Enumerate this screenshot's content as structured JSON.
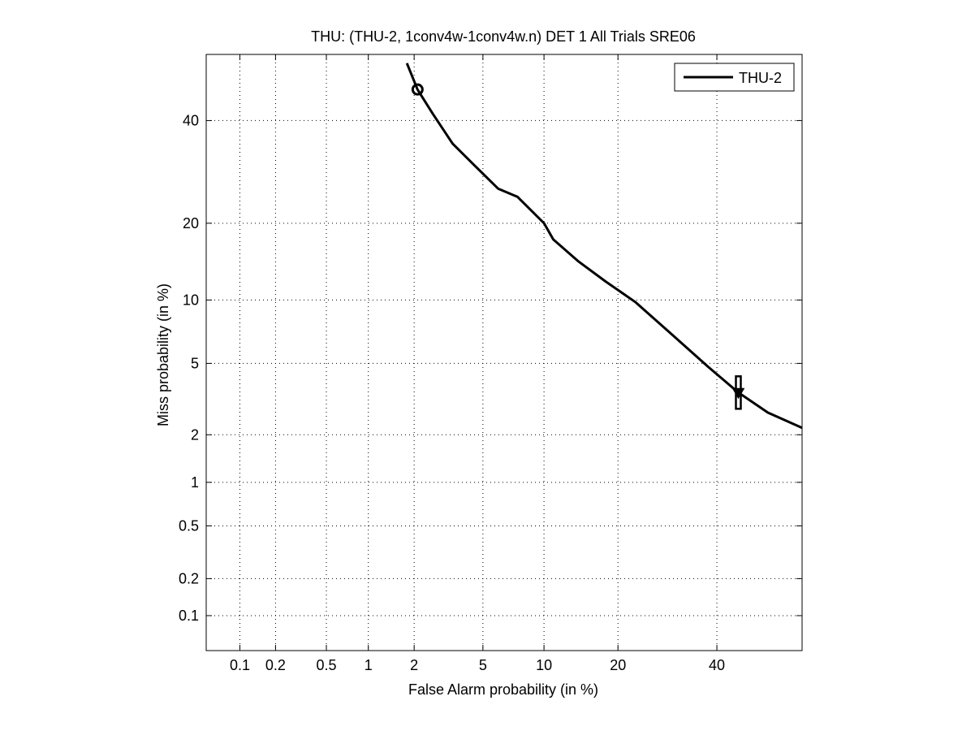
{
  "chart_data": {
    "type": "line",
    "scale": "normal-deviate (DET)",
    "title": "THU: (THU-2, 1conv4w-1conv4w.n) DET 1 All Trials SRE06",
    "xlabel": "False Alarm probability (in %)",
    "ylabel": "Miss probability (in %)",
    "xlim": [
      0.05,
      60
    ],
    "ylim": [
      0.05,
      55
    ],
    "xticks": [
      0.1,
      0.2,
      0.5,
      1,
      2,
      5,
      10,
      20,
      40
    ],
    "xtick_labels": [
      "0.1",
      "0.2",
      "0.5",
      "1",
      "2",
      "5",
      "10",
      "20",
      "40"
    ],
    "yticks": [
      0.1,
      0.2,
      0.5,
      1,
      2,
      5,
      10,
      20,
      40
    ],
    "ytick_labels": [
      "0.1",
      "0.2",
      "0.5",
      "1",
      "2",
      "5",
      "10",
      "20",
      "40"
    ],
    "grid": "dotted",
    "legend": {
      "position": "top-right",
      "entries": [
        "THU-2"
      ]
    },
    "series": [
      {
        "name": "THU-2",
        "color": "#000000",
        "points": [
          {
            "x": 1.8,
            "y": 53.0
          },
          {
            "x": 2.1,
            "y": 47.0
          },
          {
            "x": 2.6,
            "y": 41.5
          },
          {
            "x": 3.4,
            "y": 35.0
          },
          {
            "x": 4.5,
            "y": 30.5
          },
          {
            "x": 6.0,
            "y": 26.0
          },
          {
            "x": 7.5,
            "y": 24.5
          },
          {
            "x": 10.0,
            "y": 20.0
          },
          {
            "x": 11.0,
            "y": 17.5
          },
          {
            "x": 14.0,
            "y": 14.5
          },
          {
            "x": 18.0,
            "y": 12.0
          },
          {
            "x": 23.0,
            "y": 9.8
          },
          {
            "x": 30.0,
            "y": 7.0
          },
          {
            "x": 38.0,
            "y": 4.8
          },
          {
            "x": 45.0,
            "y": 3.5
          },
          {
            "x": 52.0,
            "y": 2.7
          },
          {
            "x": 60.0,
            "y": 2.2
          }
        ]
      }
    ],
    "markers": [
      {
        "name": "min-dcf-point",
        "symbol": "circle",
        "x": 2.1,
        "y": 47.0
      },
      {
        "name": "actual-dcf-point",
        "symbol": "box",
        "x": 45.0,
        "y": 3.5
      },
      {
        "name": "min-dcf-star",
        "symbol": "star",
        "x": 45.0,
        "y": 3.5
      }
    ]
  }
}
